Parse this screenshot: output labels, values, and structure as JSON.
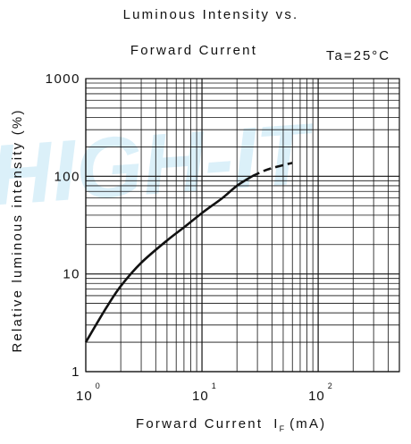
{
  "chart_data": {
    "type": "line",
    "title_line1": "Luminous Intensity vs.",
    "title_line2": "Forward Current",
    "condition": "Ta=25°C",
    "xlabel_main": "Forward Current",
    "xlabel_symbol": "I",
    "xlabel_subscript": "F",
    "xlabel_unit": "(mA)",
    "ylabel": "Relative luminous intensity (%)",
    "x_scale": "log",
    "y_scale": "log",
    "xlim": [
      1,
      500
    ],
    "ylim": [
      1,
      1000
    ],
    "x_ticks": [
      {
        "base": "10",
        "exp": "0",
        "value": 1
      },
      {
        "base": "10",
        "exp": "1",
        "value": 10
      },
      {
        "base": "10",
        "exp": "2",
        "value": 100
      }
    ],
    "y_ticks": [
      {
        "label": "1000",
        "value": 1000
      },
      {
        "label": "100",
        "value": 100
      },
      {
        "label": "10",
        "value": 10
      },
      {
        "label": "1",
        "value": 1
      }
    ],
    "grid": true,
    "series": [
      {
        "style": "solid",
        "color": "#111111",
        "points": [
          [
            1,
            2.0
          ],
          [
            1.5,
            4.5
          ],
          [
            2,
            7.5
          ],
          [
            3,
            13
          ],
          [
            5,
            22
          ],
          [
            7,
            30
          ],
          [
            10,
            42
          ],
          [
            15,
            60
          ],
          [
            20,
            80
          ],
          [
            27,
            100
          ]
        ]
      },
      {
        "style": "dashed",
        "color": "#111111",
        "points": [
          [
            27,
            100
          ],
          [
            35,
            115
          ],
          [
            45,
            126
          ],
          [
            60,
            137
          ]
        ]
      }
    ]
  },
  "watermark": {
    "text": "HIGH-IT",
    "colors": [
      "#bfe4f5",
      "#f5dcc2"
    ]
  }
}
